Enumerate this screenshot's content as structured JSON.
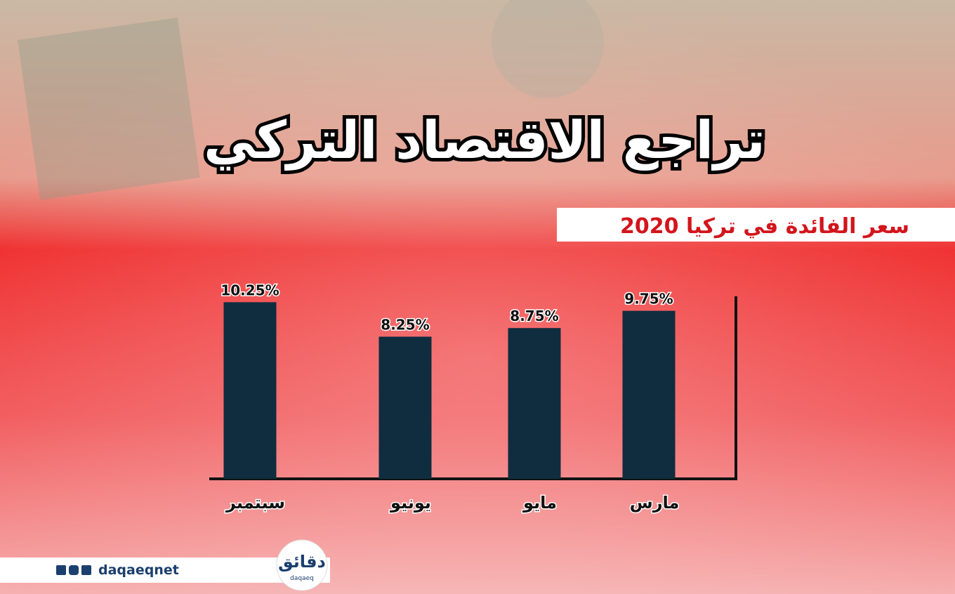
{
  "chart_data": {
    "type": "bar",
    "title": "تراجع الاقتصاد التركي",
    "subtitle": "سعر الفائدة في تركيا 2020",
    "categories": [
      "مارس",
      "مايو",
      "يونيو",
      "سبتمبر"
    ],
    "values": [
      9.75,
      8.75,
      8.25,
      10.25
    ],
    "value_labels": [
      "9.75%",
      "8.75%",
      "8.25%",
      "10.25%"
    ],
    "color": "#0f2d3f",
    "ylim": [
      0,
      11
    ]
  },
  "footer": {
    "handle": "daqaeqnet",
    "logo": "دقائق",
    "logo_sub": "daqaeq"
  }
}
